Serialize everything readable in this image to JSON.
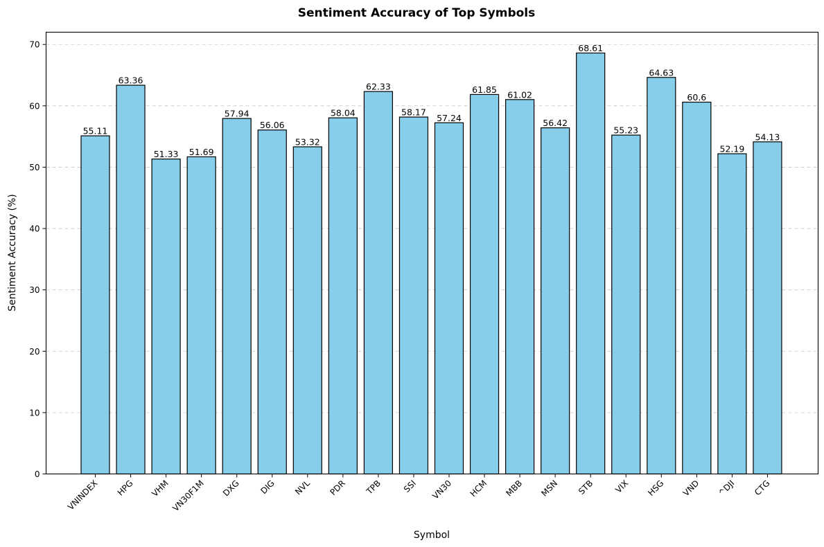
{
  "chart_data": {
    "type": "bar",
    "title": "Sentiment Accuracy of Top Symbols",
    "xlabel": "Symbol",
    "ylabel": "Sentiment Accuracy (%)",
    "ylim": [
      0,
      72
    ],
    "yticks": [
      0,
      10,
      20,
      30,
      40,
      50,
      60,
      70
    ],
    "grid": "y-dashed",
    "bar_color": "#87ceeb",
    "edge_color": "#000000",
    "categories": [
      "VNINDEX",
      "HPG",
      "VHM",
      "VN30F1M",
      "DXG",
      "DIG",
      "NVL",
      "PDR",
      "TPB",
      "SSI",
      "VN30",
      "HCM",
      "MBB",
      "MSN",
      "STB",
      "VIX",
      "HSG",
      "VND",
      "^DJI",
      "CTG"
    ],
    "values": [
      55.11,
      63.36,
      51.33,
      51.69,
      57.94,
      56.06,
      53.32,
      58.04,
      62.33,
      58.17,
      57.24,
      61.85,
      61.02,
      56.42,
      68.61,
      55.23,
      64.63,
      60.6,
      52.19,
      54.13
    ],
    "value_labels": [
      "55.11",
      "63.36",
      "51.33",
      "51.69",
      "57.94",
      "56.06",
      "53.32",
      "58.04",
      "62.33",
      "58.17",
      "57.24",
      "61.85",
      "61.02",
      "56.42",
      "68.61",
      "55.23",
      "64.63",
      "60.6",
      "52.19",
      "54.13"
    ]
  }
}
